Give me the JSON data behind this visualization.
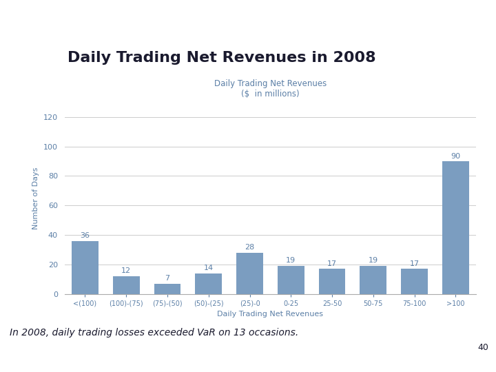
{
  "chart_title": "Daily Trading Net Revenues",
  "chart_subtitle": "($  in millions)",
  "main_title": "Daily Trading Net Revenues in 2008",
  "xlabel": "Daily Trading Net Revenues",
  "ylabel": "Number of Days",
  "categories": [
    "<(100)",
    "(100)-(75)",
    "(75)-(50)",
    "(50)-(25)",
    "(25)-0",
    "0-25",
    "25-50",
    "50-75",
    "75-100",
    ">100"
  ],
  "values": [
    36,
    12,
    7,
    14,
    28,
    19,
    17,
    19,
    17,
    90
  ],
  "bar_color": "#7B9DC0",
  "ylim": [
    0,
    130
  ],
  "yticks": [
    0,
    20,
    40,
    60,
    80,
    100,
    120
  ],
  "background_color": "#ffffff",
  "header_bar_color": "#111111",
  "goldman_box_color": "#7B9DC0",
  "goldman_text_color": "#ffffff",
  "title_color": "#1a1a2e",
  "chart_title_color": "#5B7FA6",
  "axis_label_color": "#5B7FA6",
  "tick_label_color": "#5B7FA6",
  "value_label_color": "#5B7FA6",
  "footer_text": "In 2008, daily trading losses exceeded VaR on 13 occasions.",
  "page_number": "40",
  "footer_bar_color": "#111111",
  "mpf_box_color": "#c0392b"
}
